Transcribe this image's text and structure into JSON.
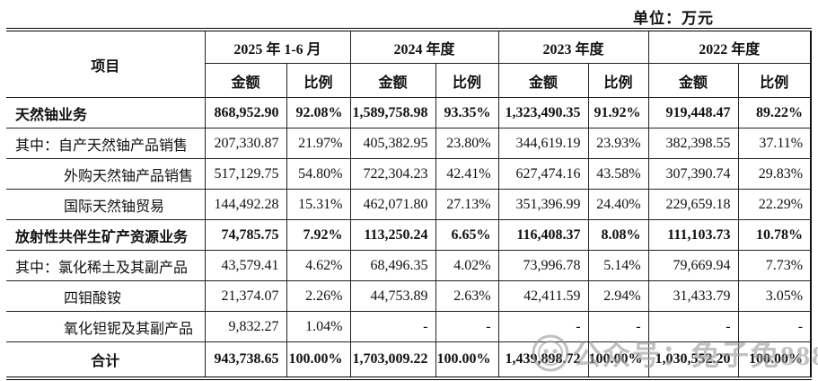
{
  "page": {
    "unit_label": "单位：万元"
  },
  "watermark": {
    "text": "公众号：兔子兔888"
  },
  "table": {
    "item_header": "项目",
    "amount_label": "金额",
    "ratio_label": "比例",
    "periods": [
      "2025 年 1-6 月",
      "2024 年度",
      "2023 年度",
      "2022 年度"
    ],
    "rows": [
      {
        "label": "天然铀业务",
        "bold": true,
        "indent": "none",
        "values": [
          "868,952.90",
          "92.08%",
          "1,589,758.98",
          "93.35%",
          "1,323,490.35",
          "91.92%",
          "919,448.47",
          "89.22%"
        ]
      },
      {
        "label": "其中：自产天然铀产品销售",
        "bold": false,
        "indent": "none",
        "values": [
          "207,330.87",
          "21.97%",
          "405,382.95",
          "23.80%",
          "344,619.19",
          "23.93%",
          "382,398.55",
          "37.11%"
        ]
      },
      {
        "label": "外购天然铀产品销售",
        "bold": false,
        "indent": "sub",
        "values": [
          "517,129.75",
          "54.80%",
          "722,304.23",
          "42.41%",
          "627,474.16",
          "43.58%",
          "307,390.74",
          "29.83%"
        ]
      },
      {
        "label": "国际天然铀贸易",
        "bold": false,
        "indent": "sub",
        "values": [
          "144,492.28",
          "15.31%",
          "462,071.80",
          "27.13%",
          "351,396.99",
          "24.40%",
          "229,659.18",
          "22.29%"
        ]
      },
      {
        "label": "放射性共伴生矿产资源业务",
        "bold": true,
        "indent": "none",
        "values": [
          "74,785.75",
          "7.92%",
          "113,250.24",
          "6.65%",
          "116,408.37",
          "8.08%",
          "111,103.73",
          "10.78%"
        ]
      },
      {
        "label": "其中：氯化稀土及其副产品",
        "bold": false,
        "indent": "none",
        "values": [
          "43,579.41",
          "4.62%",
          "68,496.35",
          "4.02%",
          "73,996.78",
          "5.14%",
          "79,669.94",
          "7.73%"
        ]
      },
      {
        "label": "四钼酸铵",
        "bold": false,
        "indent": "sub",
        "values": [
          "21,374.07",
          "2.26%",
          "44,753.89",
          "2.63%",
          "42,411.59",
          "2.94%",
          "31,433.79",
          "3.05%"
        ]
      },
      {
        "label": "氧化钽铌及其副产品",
        "bold": false,
        "indent": "sub",
        "values": [
          "9,832.27",
          "1.04%",
          "-",
          "-",
          "-",
          "-",
          "-",
          "-"
        ]
      },
      {
        "label": "合计",
        "bold": true,
        "indent": "none",
        "align": "center",
        "total": true,
        "values": [
          "943,738.65",
          "100.00%",
          "1,703,009.22",
          "100.00%",
          "1,439,898.72",
          "100.00%",
          "1,030,552.20",
          "100.00%"
        ]
      }
    ]
  }
}
